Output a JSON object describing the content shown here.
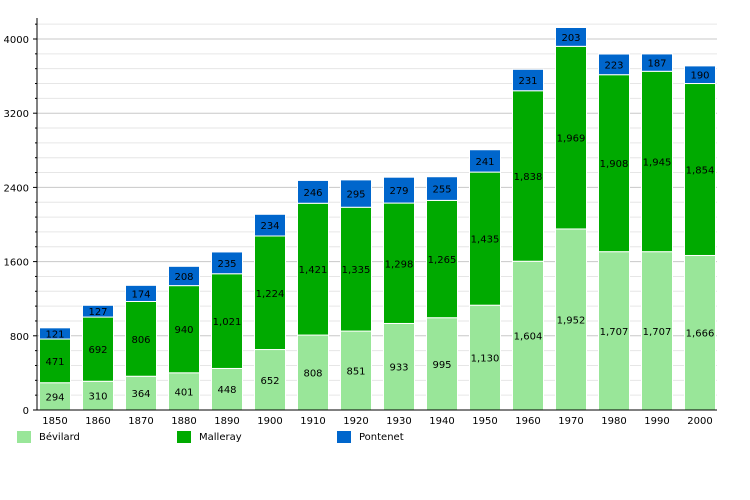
{
  "chart_data": {
    "type": "bar",
    "stacked": true,
    "title": "",
    "xlabel": "",
    "ylabel": "",
    "categories": [
      "1850",
      "1860",
      "1870",
      "1880",
      "1890",
      "1900",
      "1910",
      "1920",
      "1930",
      "1940",
      "1950",
      "1960",
      "1970",
      "1980",
      "1990",
      "2000"
    ],
    "series": [
      {
        "name": "Bévilard",
        "color": "#99e699",
        "values": [
          294,
          310,
          364,
          401,
          448,
          652,
          808,
          851,
          933,
          995,
          1130,
          1604,
          1952,
          1707,
          1707,
          1666
        ],
        "labels": [
          "294",
          "310",
          "364",
          "401",
          "448",
          "652",
          "808",
          "851",
          "933",
          "995",
          "1,130",
          "1,604",
          "1,952",
          "1,707",
          "1,707",
          "1,666"
        ]
      },
      {
        "name": "Malleray",
        "color": "#00aa00",
        "values": [
          471,
          692,
          806,
          940,
          1021,
          1224,
          1421,
          1335,
          1298,
          1265,
          1435,
          1838,
          1969,
          1908,
          1945,
          1854
        ],
        "labels": [
          "471",
          "692",
          "806",
          "940",
          "1,021",
          "1,224",
          "1,421",
          "1,335",
          "1,298",
          "1,265",
          "1,435",
          "1,838",
          "1,969",
          "1,908",
          "1,945",
          "1,854"
        ]
      },
      {
        "name": "Pontenet",
        "color": "#0066cc",
        "values": [
          121,
          127,
          174,
          208,
          235,
          234,
          246,
          295,
          279,
          255,
          241,
          231,
          203,
          223,
          187,
          190
        ],
        "labels": [
          "121",
          "127",
          "174",
          "208",
          "235",
          "234",
          "246",
          "295",
          "279",
          "255",
          "241",
          "231",
          "203",
          "223",
          "187",
          "190"
        ]
      }
    ],
    "ylim": [
      0,
      4200
    ],
    "yticks": [
      "0",
      "800",
      "1600",
      "2400",
      "3200",
      "4000"
    ],
    "grid": true,
    "legend_position": "bottom"
  }
}
